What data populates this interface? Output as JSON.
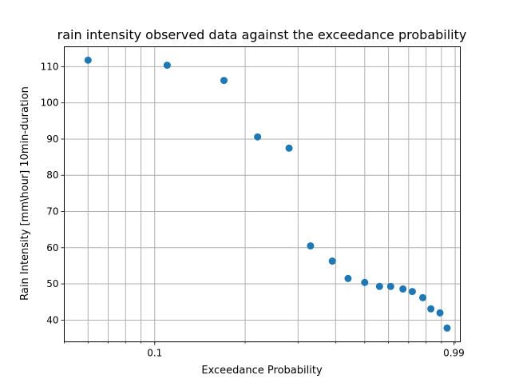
{
  "chart_data": {
    "type": "scatter",
    "title": "rain intensity observed data against the exceedance probability",
    "xlabel": "Exceedance Probability",
    "ylabel": "Rain Intensity [mm\\hour] 10min-duration",
    "xscale": "log",
    "xlim": [
      0.05,
      1.04
    ],
    "ylim": [
      34,
      115.5
    ],
    "xticks": [
      {
        "value": 0.1,
        "label": "0.1"
      },
      {
        "value": 0.99,
        "label": "0.99"
      }
    ],
    "yticks": [
      40,
      50,
      60,
      70,
      80,
      90,
      100,
      110
    ],
    "grid": true,
    "color": "#1f77b4",
    "x": [
      0.06,
      0.11,
      0.17,
      0.22,
      0.28,
      0.33,
      0.39,
      0.44,
      0.5,
      0.56,
      0.61,
      0.67,
      0.72,
      0.78,
      0.83,
      0.89,
      0.94
    ],
    "y": [
      111.8,
      110.4,
      106.2,
      90.6,
      87.5,
      60.5,
      56.3,
      51.5,
      50.4,
      49.3,
      49.3,
      48.6,
      47.9,
      46.2,
      43.1,
      42.0,
      37.8
    ]
  }
}
